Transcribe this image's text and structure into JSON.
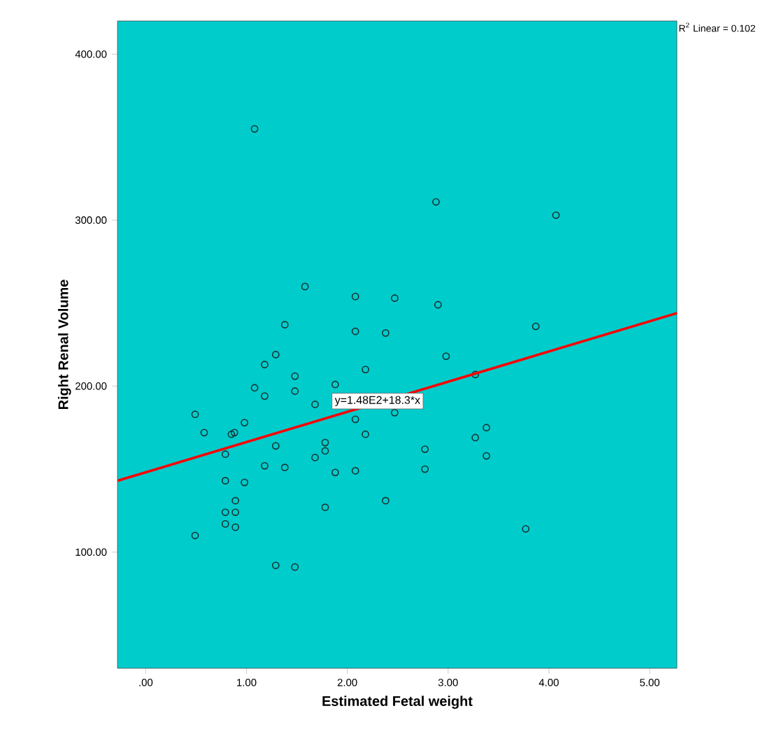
{
  "chart_data": {
    "type": "scatter",
    "xlabel": "Estimated Fetal weight",
    "ylabel": "Right Renal Volume",
    "xlim": [
      -0.28,
      5.27
    ],
    "ylim": [
      30,
      420
    ],
    "xticks": [
      {
        "value": 0,
        "label": ".00"
      },
      {
        "value": 1,
        "label": "1.00"
      },
      {
        "value": 2,
        "label": "2.00"
      },
      {
        "value": 3,
        "label": "3.00"
      },
      {
        "value": 4,
        "label": "4.00"
      },
      {
        "value": 5,
        "label": "5.00"
      }
    ],
    "yticks": [
      {
        "value": 100,
        "label": "100.00"
      },
      {
        "value": 200,
        "label": "200.00"
      },
      {
        "value": 300,
        "label": "300.00"
      },
      {
        "value": 400,
        "label": "400.00"
      }
    ],
    "grid": false,
    "series": [
      {
        "color": "#1a3333",
        "marker": "circle",
        "x": [
          1.08,
          2.88,
          4.07,
          1.58,
          2.08,
          2.47,
          2.9,
          1.38,
          3.87,
          2.08,
          2.38,
          2.98,
          1.29,
          1.18,
          3.27,
          1.08,
          1.48,
          1.48,
          1.18,
          1.88,
          2.18,
          1.68,
          2.08,
          2.18,
          2.47,
          0.49,
          0.58,
          0.85,
          0.88,
          0.98,
          0.79,
          1.29,
          1.78,
          1.78,
          1.68,
          1.18,
          1.38,
          1.88,
          2.08,
          2.77,
          2.77,
          3.27,
          3.38,
          3.38,
          0.79,
          0.98,
          0.89,
          2.38,
          1.78,
          0.79,
          0.89,
          0.79,
          0.89,
          0.49,
          1.29,
          1.48,
          3.77
        ],
        "values": [
          355,
          311,
          303,
          260,
          254,
          253,
          249,
          237,
          236,
          233,
          232,
          218,
          219,
          213,
          207,
          199,
          206,
          197,
          194,
          201,
          210,
          189,
          180,
          171,
          184,
          183,
          172,
          171,
          172,
          178,
          159,
          164,
          166,
          161,
          157,
          152,
          151,
          148,
          149,
          162,
          150,
          169,
          175,
          158,
          143,
          142,
          131,
          131,
          127,
          124,
          124,
          117,
          115,
          110,
          92,
          91,
          114
        ]
      },
      {
        "type": "line",
        "color": "#ff0000",
        "x": [
          -0.28,
          5.27
        ],
        "values": [
          143,
          244
        ]
      }
    ],
    "annotations": [
      {
        "text": "y=1.48E2+18.3*x",
        "x": 2.3,
        "y": 191
      },
      "R$^{2}$ Linear = 0.102"
    ]
  }
}
